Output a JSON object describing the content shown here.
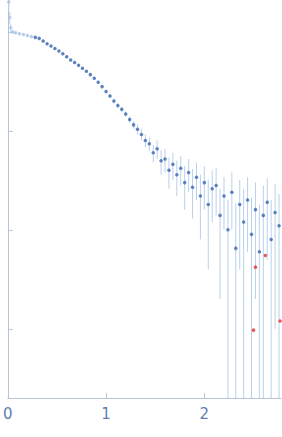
{
  "chart_data": {
    "type": "scatter",
    "log": "y",
    "tick_labels": "x",
    "grid": false,
    "xlim": [
      0,
      2.78
    ],
    "ylim": [
      0.0002,
      2.1
    ],
    "xticks": [
      0,
      1,
      2
    ],
    "yticks": [
      0.001,
      0.01,
      0.1,
      1
    ],
    "series": [
      {
        "color": "#a9c4e6",
        "marker": "circle",
        "x": [
          0.01,
          0.02,
          0.03,
          0.05,
          0.08,
          0.12,
          0.16,
          0.2,
          0.24
        ],
        "values": [
          2.0,
          1.4,
          1.1,
          1.0,
          0.98,
          0.96,
          0.94,
          0.92,
          0.9
        ],
        "errors": [
          0.3,
          0.2,
          0.1,
          0.05,
          0.03,
          0.02,
          0.02,
          0.02,
          0.02
        ]
      },
      {
        "color": "#3866b0",
        "marker": "circle",
        "x": [
          0.28,
          0.32,
          0.36,
          0.4,
          0.44,
          0.48,
          0.52,
          0.56,
          0.6,
          0.64,
          0.68,
          0.72,
          0.76,
          0.8,
          0.84,
          0.88,
          0.92,
          0.96,
          1.0,
          1.04,
          1.08,
          1.12,
          1.16,
          1.2,
          1.24,
          1.28,
          1.32,
          1.36,
          1.4,
          1.44,
          1.48,
          1.52,
          1.56,
          1.6,
          1.64,
          1.68,
          1.72,
          1.76,
          1.8,
          1.84,
          1.88,
          1.92,
          1.96,
          2.0,
          2.04,
          2.08,
          2.12,
          2.16,
          2.2,
          2.24,
          2.28,
          2.32,
          2.36,
          2.4,
          2.44,
          2.48,
          2.52,
          2.56,
          2.6,
          2.64,
          2.68,
          2.72,
          2.76
        ],
        "values": [
          0.88,
          0.86,
          0.81,
          0.76,
          0.72,
          0.68,
          0.64,
          0.6,
          0.56,
          0.52,
          0.49,
          0.46,
          0.43,
          0.4,
          0.37,
          0.34,
          0.31,
          0.28,
          0.25,
          0.225,
          0.2,
          0.18,
          0.165,
          0.148,
          0.13,
          0.115,
          0.104,
          0.092,
          0.08,
          0.074,
          0.06,
          0.066,
          0.05,
          0.052,
          0.04,
          0.046,
          0.036,
          0.042,
          0.03,
          0.038,
          0.027,
          0.034,
          0.022,
          0.03,
          0.018,
          0.026,
          0.028,
          0.014,
          0.022,
          0.01,
          0.024,
          0.0065,
          0.018,
          0.012,
          0.02,
          0.009,
          0.016,
          0.006,
          0.014,
          0.019,
          0.008,
          0.015,
          0.011
        ],
        "errors": [
          0.01,
          0.01,
          0.01,
          0.01,
          0.01,
          0.01,
          0.01,
          0.01,
          0.01,
          0.01,
          0.01,
          0.01,
          0.01,
          0.01,
          0.01,
          0.01,
          0.01,
          0.01,
          0.01,
          0.01,
          0.01,
          0.01,
          0.01,
          0.01,
          0.01,
          0.01,
          0.012,
          0.012,
          0.012,
          0.012,
          0.012,
          0.014,
          0.014,
          0.014,
          0.014,
          0.014,
          0.014,
          0.014,
          0.014,
          0.014,
          0.014,
          0.014,
          0.014,
          0.014,
          0.014,
          0.014,
          0.014,
          0.012,
          0.012,
          0.01,
          0.014,
          0.012,
          0.014,
          0.014,
          0.014,
          0.012,
          0.014,
          0.012,
          0.014,
          0.014,
          0.012,
          0.014,
          0.012
        ]
      },
      {
        "color": "#e8302a",
        "marker": "circle",
        "x": [
          2.5,
          2.52,
          2.62,
          2.77
        ],
        "values": [
          0.00097,
          0.0042,
          0.0055,
          0.0012
        ]
      }
    ]
  }
}
